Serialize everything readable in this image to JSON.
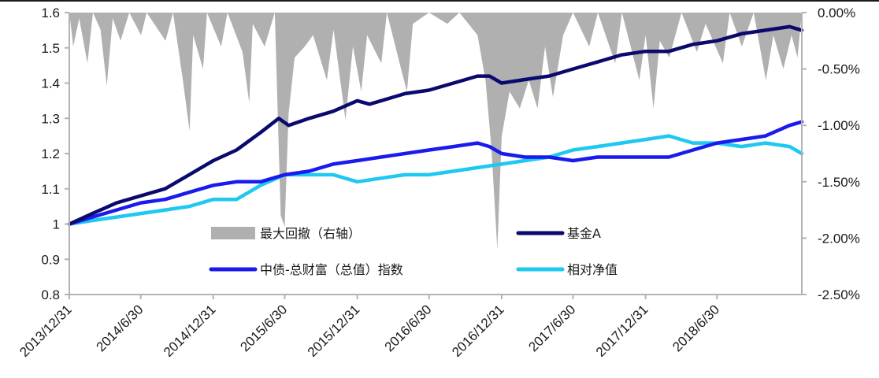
{
  "chart_data": {
    "type": "line",
    "x_tick_labels": [
      "2013/12/31",
      "2014/6/30",
      "2014/12/31",
      "2015/6/30",
      "2015/12/31",
      "2016/6/30",
      "2016/12/31",
      "2017/6/30",
      "2017/12/31",
      "2018/6/30"
    ],
    "y_left": {
      "ylim": [
        0.8,
        1.6
      ],
      "tick_labels": [
        "0.8",
        "0.9",
        "1",
        "1.1",
        "1.2",
        "1.3",
        "1.4",
        "1.5",
        "1.6"
      ]
    },
    "y_right": {
      "ylim": [
        -2.5,
        0.0
      ],
      "tick_labels": [
        "-2.50%",
        "-2.00%",
        "-1.50%",
        "-1.00%",
        "-0.50%",
        "0.00%"
      ]
    },
    "x_range": [
      "2013/12/31",
      "2019/01/31"
    ],
    "legend": {
      "placement": "inside-bottom-center"
    },
    "series": [
      {
        "name": "基金A",
        "axis": "left",
        "color": "#0a0a6e",
        "points": [
          [
            "2013/12/31",
            1.0
          ],
          [
            "2014/02/28",
            1.03
          ],
          [
            "2014/04/30",
            1.06
          ],
          [
            "2014/06/30",
            1.08
          ],
          [
            "2014/08/31",
            1.1
          ],
          [
            "2014/10/31",
            1.14
          ],
          [
            "2014/12/31",
            1.18
          ],
          [
            "2015/02/28",
            1.21
          ],
          [
            "2015/04/30",
            1.26
          ],
          [
            "2015/06/15",
            1.3
          ],
          [
            "2015/07/10",
            1.28
          ],
          [
            "2015/08/31",
            1.3
          ],
          [
            "2015/10/31",
            1.32
          ],
          [
            "2015/12/31",
            1.35
          ],
          [
            "2016/01/31",
            1.34
          ],
          [
            "2016/03/31",
            1.36
          ],
          [
            "2016/04/30",
            1.37
          ],
          [
            "2016/06/30",
            1.38
          ],
          [
            "2016/08/31",
            1.4
          ],
          [
            "2016/10/31",
            1.42
          ],
          [
            "2016/11/30",
            1.42
          ],
          [
            "2016/12/31",
            1.4
          ],
          [
            "2017/02/28",
            1.41
          ],
          [
            "2017/04/30",
            1.42
          ],
          [
            "2017/06/30",
            1.44
          ],
          [
            "2017/08/31",
            1.46
          ],
          [
            "2017/10/31",
            1.48
          ],
          [
            "2017/12/31",
            1.49
          ],
          [
            "2018/02/28",
            1.49
          ],
          [
            "2018/04/30",
            1.51
          ],
          [
            "2018/06/30",
            1.52
          ],
          [
            "2018/08/31",
            1.54
          ],
          [
            "2018/10/31",
            1.55
          ],
          [
            "2018/12/31",
            1.56
          ],
          [
            "2019/01/31",
            1.55
          ]
        ]
      },
      {
        "name": "中债-总财富（总值）指数",
        "axis": "left",
        "color": "#1a1aee",
        "points": [
          [
            "2013/12/31",
            1.0
          ],
          [
            "2014/02/28",
            1.02
          ],
          [
            "2014/04/30",
            1.04
          ],
          [
            "2014/06/30",
            1.06
          ],
          [
            "2014/08/31",
            1.07
          ],
          [
            "2014/10/31",
            1.09
          ],
          [
            "2014/12/31",
            1.11
          ],
          [
            "2015/02/28",
            1.12
          ],
          [
            "2015/04/30",
            1.12
          ],
          [
            "2015/06/30",
            1.14
          ],
          [
            "2015/08/31",
            1.15
          ],
          [
            "2015/10/31",
            1.17
          ],
          [
            "2015/12/31",
            1.18
          ],
          [
            "2016/02/29",
            1.19
          ],
          [
            "2016/04/30",
            1.2
          ],
          [
            "2016/06/30",
            1.21
          ],
          [
            "2016/08/31",
            1.22
          ],
          [
            "2016/10/31",
            1.23
          ],
          [
            "2016/11/30",
            1.22
          ],
          [
            "2016/12/31",
            1.2
          ],
          [
            "2017/02/28",
            1.19
          ],
          [
            "2017/04/30",
            1.19
          ],
          [
            "2017/06/30",
            1.18
          ],
          [
            "2017/08/31",
            1.19
          ],
          [
            "2017/10/31",
            1.19
          ],
          [
            "2017/12/31",
            1.19
          ],
          [
            "2018/02/28",
            1.19
          ],
          [
            "2018/04/30",
            1.21
          ],
          [
            "2018/06/30",
            1.23
          ],
          [
            "2018/08/31",
            1.24
          ],
          [
            "2018/10/31",
            1.25
          ],
          [
            "2018/12/31",
            1.28
          ],
          [
            "2019/01/31",
            1.29
          ]
        ]
      },
      {
        "name": "相对净值",
        "axis": "left",
        "color": "#1ec8f0",
        "points": [
          [
            "2013/12/31",
            1.0
          ],
          [
            "2014/02/28",
            1.01
          ],
          [
            "2014/04/30",
            1.02
          ],
          [
            "2014/06/30",
            1.03
          ],
          [
            "2014/08/31",
            1.04
          ],
          [
            "2014/10/31",
            1.05
          ],
          [
            "2014/12/31",
            1.07
          ],
          [
            "2015/02/28",
            1.07
          ],
          [
            "2015/04/30",
            1.11
          ],
          [
            "2015/06/30",
            1.14
          ],
          [
            "2015/08/31",
            1.14
          ],
          [
            "2015/10/31",
            1.14
          ],
          [
            "2015/12/31",
            1.12
          ],
          [
            "2016/02/29",
            1.13
          ],
          [
            "2016/04/30",
            1.14
          ],
          [
            "2016/06/30",
            1.14
          ],
          [
            "2016/08/31",
            1.15
          ],
          [
            "2016/10/31",
            1.16
          ],
          [
            "2016/12/31",
            1.17
          ],
          [
            "2017/02/28",
            1.18
          ],
          [
            "2017/04/30",
            1.19
          ],
          [
            "2017/06/30",
            1.21
          ],
          [
            "2017/08/31",
            1.22
          ],
          [
            "2017/10/31",
            1.23
          ],
          [
            "2017/12/31",
            1.24
          ],
          [
            "2018/02/28",
            1.25
          ],
          [
            "2018/04/30",
            1.23
          ],
          [
            "2018/06/30",
            1.23
          ],
          [
            "2018/08/31",
            1.22
          ],
          [
            "2018/10/31",
            1.23
          ],
          [
            "2018/12/31",
            1.22
          ],
          [
            "2019/01/31",
            1.2
          ]
        ]
      },
      {
        "name": "最大回撤（右轴）",
        "axis": "right",
        "type": "area",
        "color": "#b0b0b0",
        "points": [
          [
            "2013/12/31",
            0.0
          ],
          [
            "2014/01/10",
            -0.3
          ],
          [
            "2014/01/25",
            -0.05
          ],
          [
            "2014/02/15",
            -0.45
          ],
          [
            "2014/03/01",
            0.0
          ],
          [
            "2014/03/20",
            -0.15
          ],
          [
            "2014/04/05",
            -0.65
          ],
          [
            "2014/04/20",
            -0.05
          ],
          [
            "2014/05/10",
            -0.25
          ],
          [
            "2014/06/01",
            0.0
          ],
          [
            "2014/07/01",
            -0.2
          ],
          [
            "2014/07/15",
            0.0
          ],
          [
            "2014/09/01",
            -0.25
          ],
          [
            "2014/09/20",
            0.0
          ],
          [
            "2014/10/15",
            -0.6
          ],
          [
            "2014/11/01",
            -1.05
          ],
          [
            "2014/11/10",
            -0.2
          ],
          [
            "2014/12/05",
            -0.5
          ],
          [
            "2014/12/15",
            0.0
          ],
          [
            "2015/01/20",
            -0.3
          ],
          [
            "2015/02/05",
            0.0
          ],
          [
            "2015/03/15",
            -0.35
          ],
          [
            "2015/04/01",
            -0.8
          ],
          [
            "2015/04/10",
            -0.1
          ],
          [
            "2015/05/10",
            -0.3
          ],
          [
            "2015/06/05",
            0.0
          ],
          [
            "2015/06/20",
            -1.8
          ],
          [
            "2015/06/30",
            -1.9
          ],
          [
            "2015/07/10",
            -0.9
          ],
          [
            "2015/07/25",
            -0.4
          ],
          [
            "2015/08/20",
            -0.3
          ],
          [
            "2015/09/10",
            -0.2
          ],
          [
            "2015/10/15",
            -0.6
          ],
          [
            "2015/11/01",
            -0.15
          ],
          [
            "2015/12/01",
            -0.95
          ],
          [
            "2015/12/20",
            -0.3
          ],
          [
            "2016/01/10",
            -0.7
          ],
          [
            "2016/01/25",
            -0.2
          ],
          [
            "2016/03/01",
            -0.45
          ],
          [
            "2016/03/15",
            0.0
          ],
          [
            "2016/04/20",
            -0.5
          ],
          [
            "2016/05/05",
            -0.7
          ],
          [
            "2016/05/20",
            -0.1
          ],
          [
            "2016/06/30",
            0.0
          ],
          [
            "2016/08/15",
            -0.1
          ],
          [
            "2016/09/15",
            0.0
          ],
          [
            "2016/10/31",
            -0.2
          ],
          [
            "2016/11/20",
            -0.6
          ],
          [
            "2016/12/05",
            -1.2
          ],
          [
            "2016/12/20",
            -2.1
          ],
          [
            "2016/12/31",
            -1.1
          ],
          [
            "2017/01/20",
            -0.7
          ],
          [
            "2017/02/15",
            -0.85
          ],
          [
            "2017/03/10",
            -0.6
          ],
          [
            "2017/04/01",
            -0.85
          ],
          [
            "2017/04/20",
            -0.3
          ],
          [
            "2017/05/10",
            -0.75
          ],
          [
            "2017/06/05",
            -0.2
          ],
          [
            "2017/06/30",
            0.0
          ],
          [
            "2017/08/10",
            -0.3
          ],
          [
            "2017/09/01",
            0.0
          ],
          [
            "2017/10/15",
            -0.45
          ],
          [
            "2017/11/01",
            0.0
          ],
          [
            "2017/12/15",
            -0.6
          ],
          [
            "2017/12/31",
            -0.2
          ],
          [
            "2018/01/20",
            -0.85
          ],
          [
            "2018/02/05",
            -0.25
          ],
          [
            "2018/03/01",
            -0.4
          ],
          [
            "2018/04/01",
            0.0
          ],
          [
            "2018/05/10",
            -0.35
          ],
          [
            "2018/06/01",
            -0.1
          ],
          [
            "2018/07/15",
            -0.45
          ],
          [
            "2018/08/01",
            0.0
          ],
          [
            "2018/09/01",
            -0.3
          ],
          [
            "2018/10/01",
            0.0
          ],
          [
            "2018/11/01",
            -0.6
          ],
          [
            "2018/11/20",
            -0.2
          ],
          [
            "2018/12/15",
            -0.5
          ],
          [
            "2019/01/05",
            -0.2
          ],
          [
            "2019/01/20",
            -0.4
          ],
          [
            "2019/01/31",
            0.0
          ]
        ]
      }
    ]
  }
}
